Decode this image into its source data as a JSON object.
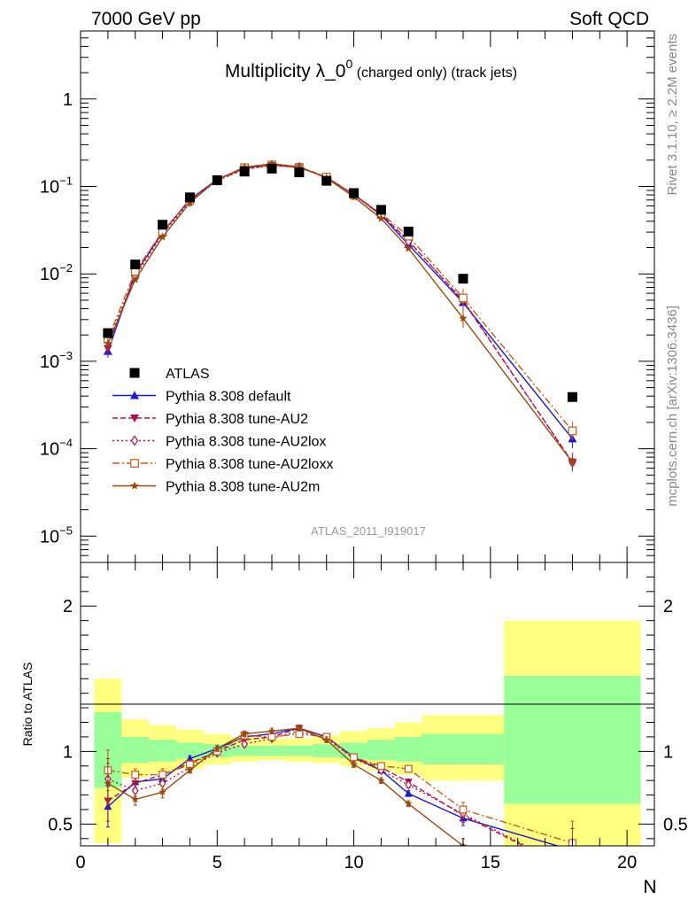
{
  "header": {
    "left": "7000 GeV pp",
    "right": "Soft QCD"
  },
  "side_labels": {
    "rivet": "Rivet 3.1.10, ≥ 2.2M events",
    "mcplots": "mcplots.cern.ch [arXiv:1306.3436]"
  },
  "chart_data": {
    "type": "line",
    "title_main": "Multiplicity λ_0",
    "title_sup": "0",
    "title_rest": " (charged only) (track jets)",
    "analysis_label": "ATLAS_2011_I919017",
    "xlabel": "N",
    "ratio_ylabel": "Ratio to ATLAS",
    "xlim": [
      0,
      21
    ],
    "main_ylim": [
      5e-06,
      6
    ],
    "main_yscale": "log",
    "ratio_ylim": [
      0.35,
      2.3
    ],
    "x_ticks": [
      "0",
      "5",
      "10",
      "15",
      "20"
    ],
    "main_y_ticks": [
      {
        "base": "1",
        "exp": ""
      },
      {
        "base": "10",
        "exp": "−1"
      },
      {
        "base": "10",
        "exp": "−2"
      },
      {
        "base": "10",
        "exp": "−3"
      },
      {
        "base": "10",
        "exp": "−4"
      },
      {
        "base": "10",
        "exp": "−5"
      }
    ],
    "ratio_y_ticks": [
      "0.5",
      "1",
      "2"
    ],
    "data": {
      "name": "ATLAS",
      "color": "#000000",
      "x": [
        1,
        2,
        3,
        4,
        5,
        6,
        7,
        8,
        9,
        10,
        11,
        12,
        14,
        18
      ],
      "y": [
        0.0021,
        0.0128,
        0.0365,
        0.075,
        0.118,
        0.148,
        0.16,
        0.145,
        0.116,
        0.084,
        0.054,
        0.0305,
        0.0088,
        0.00039
      ]
    },
    "bands": [
      {
        "x0": 0.5,
        "x1": 1.5,
        "yellow": [
          0.37,
          1.5
        ],
        "green": [
          0.75,
          1.27
        ]
      },
      {
        "x0": 1.5,
        "x1": 2.5,
        "yellow": [
          0.82,
          1.22
        ],
        "green": [
          0.92,
          1.1
        ]
      },
      {
        "x0": 2.5,
        "x1": 3.5,
        "yellow": [
          0.85,
          1.18
        ],
        "green": [
          0.93,
          1.08
        ]
      },
      {
        "x0": 3.5,
        "x1": 4.5,
        "yellow": [
          0.88,
          1.15
        ],
        "green": [
          0.95,
          1.06
        ]
      },
      {
        "x0": 4.5,
        "x1": 5.5,
        "yellow": [
          0.91,
          1.12
        ],
        "green": [
          0.96,
          1.05
        ]
      },
      {
        "x0": 5.5,
        "x1": 6.5,
        "yellow": [
          0.93,
          1.1
        ],
        "green": [
          0.97,
          1.04
        ]
      },
      {
        "x0": 6.5,
        "x1": 7.5,
        "yellow": [
          0.94,
          1.09
        ],
        "green": [
          0.97,
          1.04
        ]
      },
      {
        "x0": 7.5,
        "x1": 8.5,
        "yellow": [
          0.93,
          1.09
        ],
        "green": [
          0.97,
          1.04
        ]
      },
      {
        "x0": 8.5,
        "x1": 9.5,
        "yellow": [
          0.92,
          1.11
        ],
        "green": [
          0.96,
          1.05
        ]
      },
      {
        "x0": 9.5,
        "x1": 10.5,
        "yellow": [
          0.9,
          1.14
        ],
        "green": [
          0.95,
          1.06
        ]
      },
      {
        "x0": 10.5,
        "x1": 11.5,
        "yellow": [
          0.87,
          1.16
        ],
        "green": [
          0.94,
          1.08
        ]
      },
      {
        "x0": 11.5,
        "x1": 12.5,
        "yellow": [
          0.84,
          1.2
        ],
        "green": [
          0.93,
          1.1
        ]
      },
      {
        "x0": 12.5,
        "x1": 15.5,
        "yellow": [
          0.8,
          1.25
        ],
        "green": [
          0.91,
          1.12
        ]
      },
      {
        "x0": 15.5,
        "x1": 20.5,
        "yellow": [
          0.35,
          1.9
        ],
        "green": [
          0.64,
          1.52
        ]
      }
    ],
    "series": [
      {
        "name": "Pythia 8.308 default",
        "color": "#1a1acc",
        "dash": "",
        "marker": "triangle-up",
        "x": [
          1,
          2,
          3,
          4,
          5,
          6,
          7,
          8,
          9,
          10,
          11,
          12,
          14,
          18
        ],
        "y": [
          0.0013,
          0.0101,
          0.0297,
          0.071,
          0.12,
          0.163,
          0.175,
          0.166,
          0.127,
          0.081,
          0.047,
          0.0216,
          0.0047,
          0.00013
        ],
        "ratio": [
          0.62,
          0.79,
          0.81,
          0.95,
          1.02,
          1.1,
          1.12,
          1.16,
          1.1,
          0.96,
          0.87,
          0.71,
          0.54,
          0.32
        ]
      },
      {
        "name": "Pythia 8.308 tune-AU2",
        "color": "#b0124f",
        "dash": "6,3",
        "marker": "triangle-down",
        "x": [
          1,
          2,
          3,
          4,
          5,
          6,
          7,
          8,
          9,
          10,
          11,
          12,
          14,
          18
        ],
        "y": [
          0.0014,
          0.01,
          0.0306,
          0.069,
          0.118,
          0.16,
          0.175,
          0.168,
          0.128,
          0.08,
          0.048,
          0.024,
          0.0049,
          7e-05
        ],
        "ratio": [
          0.66,
          0.78,
          0.84,
          0.92,
          1.0,
          1.08,
          1.1,
          1.16,
          1.1,
          0.95,
          0.89,
          0.79,
          0.56,
          0.18
        ]
      },
      {
        "name": "Pythia 8.308 tune-AU2lox",
        "color": "#b0124f",
        "dash": "2,3",
        "marker": "diamond",
        "x": [
          1,
          2,
          3,
          4,
          5,
          6,
          7,
          8,
          9,
          10,
          11,
          12,
          14,
          18
        ],
        "y": [
          0.0017,
          0.0093,
          0.0285,
          0.067,
          0.117,
          0.156,
          0.174,
          0.166,
          0.126,
          0.08,
          0.047,
          0.0235,
          0.005,
          7e-05
        ],
        "ratio": [
          0.81,
          0.73,
          0.78,
          0.89,
          0.99,
          1.05,
          1.09,
          1.14,
          1.09,
          0.95,
          0.87,
          0.77,
          0.57,
          0.19
        ]
      },
      {
        "name": "Pythia 8.308 tune-AU2loxx",
        "color": "#c05c1a",
        "dash": "8,3,2,3",
        "marker": "square-open",
        "x": [
          1,
          2,
          3,
          4,
          5,
          6,
          7,
          8,
          9,
          10,
          11,
          12,
          14,
          18
        ],
        "y": [
          0.0018,
          0.0107,
          0.0306,
          0.069,
          0.118,
          0.164,
          0.176,
          0.163,
          0.128,
          0.081,
          0.049,
          0.027,
          0.0053,
          0.00016
        ],
        "ratio": [
          0.87,
          0.84,
          0.84,
          0.91,
          1.0,
          1.11,
          1.1,
          1.12,
          1.1,
          0.96,
          0.9,
          0.88,
          0.6,
          0.37
        ]
      },
      {
        "name": "Pythia 8.308 tune-AU2m",
        "color": "#9a4a10",
        "dash": "",
        "marker": "star",
        "x": [
          1,
          2,
          3,
          4,
          5,
          6,
          7,
          8,
          9,
          10,
          11,
          12,
          14,
          18
        ],
        "y": [
          0.0016,
          0.0086,
          0.0264,
          0.065,
          0.12,
          0.166,
          0.182,
          0.168,
          0.125,
          0.076,
          0.043,
          0.0196,
          0.0031,
          7e-05
        ],
        "ratio": [
          0.78,
          0.67,
          0.72,
          0.87,
          1.02,
          1.12,
          1.14,
          1.16,
          1.08,
          0.91,
          0.8,
          0.64,
          0.35,
          0.18
        ]
      }
    ]
  }
}
